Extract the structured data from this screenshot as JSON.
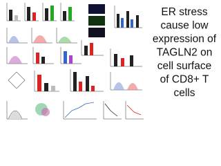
{
  "slide": {
    "title_lines": [
      "ER stress",
      "cause low",
      "expression of",
      "TAGLN2 on",
      "cell surface",
      "of CD8+ T",
      "cells"
    ]
  }
}
